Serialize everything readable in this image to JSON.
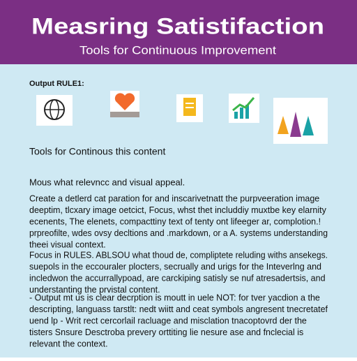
{
  "header": {
    "title": "Measring Satistifaction",
    "subtitle": "Tools for Continuous Improvement"
  },
  "section_label": "Output RULE1:",
  "section_heading": "Tools for Continous this content",
  "intro": "Mous what relevncc and visual appeal.",
  "paragraphs": [
    [
      "Create a detlerd cat paration for and inscarivetnatt the purpveeration image",
      "deeptim, tlcxary image oetcict, Focus, whst thet includdiy muxtbe key elarnity",
      "ecenents, The elenets, compacttiny text of tenty ont lifeeger ar, complotion.!",
      "prpreofilte, wdes ovsy decltions and .markdown, or a A. systems understanding",
      "theei visual context."
    ],
    [
      "Focus in RULES. ABLSOU what thoud de, compliptete reluding withs ansekegs.",
      "suepols in the eccouraler plocters, secrually and urigs for the Inteverlng and",
      "incledwon the accurrallypoad, are carckiping satisly se nuf atresadertsis, and",
      "understanting the prvistal content."
    ],
    [
      "- Output mt us is clear decrption is moutt in uele NOT: for tver yacdion a the",
      "descripting, languass tarstlt: nedt wiitt and ceat symbols angresent tnecretatef",
      "uend lp - Writ rect cercorlail racluage and misclation tnacoptovrd der the",
      "tisters Snsure Desctroba prevery orttiting lie nesure ase and fnclecial is",
      "relevant the context."
    ]
  ]
}
